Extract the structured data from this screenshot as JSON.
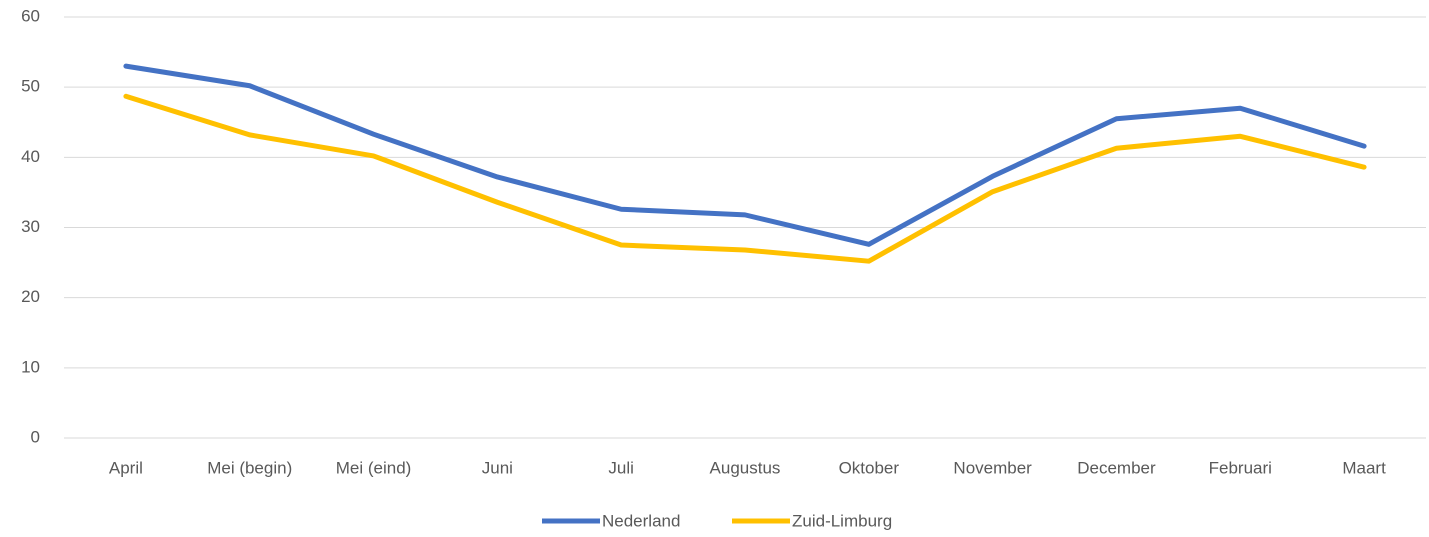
{
  "chart_data": {
    "type": "line",
    "categories": [
      "April",
      "Mei (begin)",
      "Mei (eind)",
      "Juni",
      "Juli",
      "Augustus",
      "Oktober",
      "November",
      "December",
      "Februari",
      "Maart"
    ],
    "series": [
      {
        "name": "Nederland",
        "color": "#4472c4",
        "values": [
          53.0,
          50.2,
          43.3,
          37.2,
          32.6,
          31.8,
          27.6,
          37.3,
          45.5,
          47.0,
          41.6
        ]
      },
      {
        "name": "Zuid-Limburg",
        "color": "#ffc000",
        "values": [
          48.7,
          43.2,
          40.2,
          33.6,
          27.5,
          26.8,
          25.2,
          35.1,
          41.3,
          43.0,
          38.6
        ]
      }
    ],
    "ylim": [
      0,
      60
    ],
    "yticks": [
      0,
      10,
      20,
      30,
      40,
      50,
      60
    ],
    "grid": true,
    "legend": "bottom"
  }
}
